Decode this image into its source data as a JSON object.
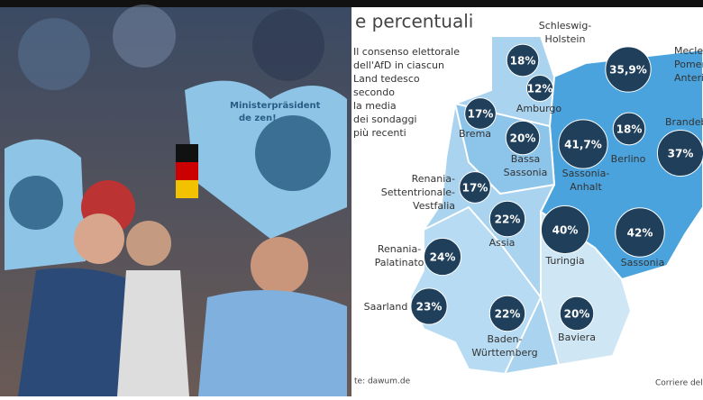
{
  "photo": {
    "sign_text": [
      "Ministerpräsident",
      "de zen!"
    ]
  },
  "map": {
    "title": "e percentuali",
    "description": [
      "Il consenso elettorale",
      "dell'AfD in ciascun",
      "Land tedesco",
      "secondo",
      "la media",
      "dei sondaggi",
      "più recenti"
    ],
    "regions": [
      {
        "name_lines": [
          "Schleswig-",
          "Holstein"
        ],
        "value": 18,
        "value_label": "18%"
      },
      {
        "name_lines": [
          "Meclemburgo",
          "Pomerania",
          "Anteriore"
        ],
        "value": 35.9,
        "value_label": "35,9%"
      },
      {
        "name_lines": [
          "Amburgo"
        ],
        "value": 12,
        "value_label": "12%"
      },
      {
        "name_lines": [
          "Brema"
        ],
        "value": 17,
        "value_label": "17%"
      },
      {
        "name_lines": [
          "Bassa",
          "Sassonia"
        ],
        "value": 20,
        "value_label": "20%"
      },
      {
        "name_lines": [
          "Sassonia-",
          "Anhalt"
        ],
        "value": 41.7,
        "value_label": "41,7%"
      },
      {
        "name_lines": [
          "Berlino"
        ],
        "value": 18,
        "value_label": "18%"
      },
      {
        "name_lines": [
          "Brandeburgo"
        ],
        "value": 37,
        "value_label": "37%"
      },
      {
        "name_lines": [
          "Renania-",
          "Settentrionale-",
          "Vestfalia"
        ],
        "value": 17,
        "value_label": "17%"
      },
      {
        "name_lines": [
          "Assia"
        ],
        "value": 22,
        "value_label": "22%"
      },
      {
        "name_lines": [
          "Turingia"
        ],
        "value": 40,
        "value_label": "40%"
      },
      {
        "name_lines": [
          "Sassonia"
        ],
        "value": 42,
        "value_label": "42%"
      },
      {
        "name_lines": [
          "Renania-",
          "Palatinato"
        ],
        "value": 24,
        "value_label": "24%"
      },
      {
        "name_lines": [
          "Saarland"
        ],
        "value": 23,
        "value_label": "23%"
      },
      {
        "name_lines": [
          "Baden-",
          "Württemberg"
        ],
        "value": 22,
        "value_label": "22%"
      },
      {
        "name_lines": [
          "Baviera"
        ],
        "value": 20,
        "value_label": "20%"
      }
    ],
    "source": "te: dawum.de",
    "credit": "Corriere della"
  }
}
